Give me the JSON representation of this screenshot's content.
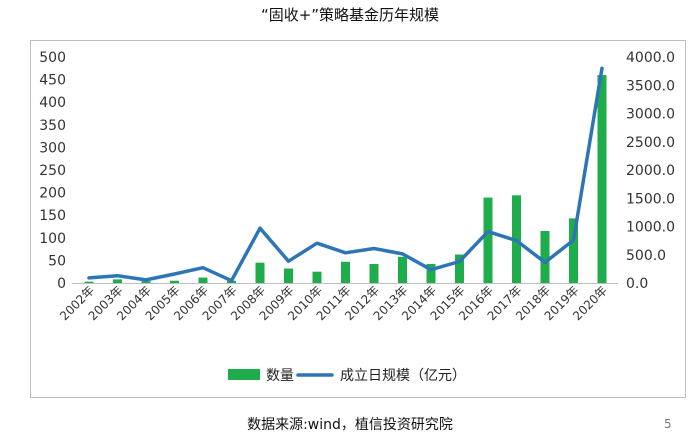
{
  "page": {
    "title": "“固收+”策略基金历年规模",
    "source": "数据来源:wind，植信投资研究院",
    "page_number": "5"
  },
  "colors": {
    "bar": "#1fad4b",
    "line": "#2e75b6"
  },
  "chart_data": {
    "type": "bar+line",
    "categories": [
      "2002年",
      "2003年",
      "2004年",
      "2005年",
      "2006年",
      "2007年",
      "2008年",
      "2009年",
      "2010年",
      "2011年",
      "2012年",
      "2013年",
      "2014年",
      "2015年",
      "2016年",
      "2017年",
      "2018年",
      "2019年",
      "2020年"
    ],
    "series": [
      {
        "name": "数量",
        "type": "bar",
        "axis": "left",
        "values": [
          3,
          8,
          4,
          5,
          12,
          5,
          45,
          32,
          25,
          47,
          42,
          58,
          42,
          63,
          189,
          194,
          115,
          143,
          460
        ]
      },
      {
        "name": "成立日规模（亿元）",
        "type": "line",
        "axis": "right",
        "values": [
          90,
          130,
          55,
          160,
          270,
          40,
          970,
          385,
          705,
          535,
          610,
          515,
          235,
          380,
          910,
          750,
          365,
          760,
          3800
        ]
      }
    ],
    "y_left": {
      "min": 0,
      "max": 500,
      "step": 50,
      "ticks": [
        "0",
        "50",
        "100",
        "150",
        "200",
        "250",
        "300",
        "350",
        "400",
        "450",
        "500"
      ]
    },
    "y_right": {
      "min": 0,
      "max": 4000,
      "step": 500,
      "ticks": [
        "0.0",
        "500.0",
        "1000.0",
        "1500.0",
        "2000.0",
        "2500.0",
        "3000.0",
        "3500.0",
        "4000.0"
      ]
    },
    "legend_position": "bottom",
    "grid": false
  }
}
